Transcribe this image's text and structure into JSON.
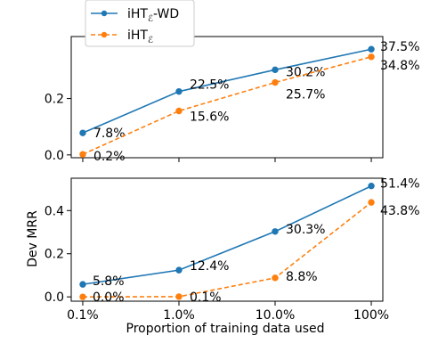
{
  "chart_data": [
    {
      "type": "line",
      "xscale": "log",
      "x": [
        0.1,
        1.0,
        10.0,
        100.0
      ],
      "xticklabels": [
        "0.1%",
        "1.0%",
        "10.0%",
        "100%"
      ],
      "xlabel": "",
      "ylabel": "",
      "ylim": [
        -0.01,
        0.42
      ],
      "yticks": [
        0.0,
        0.2
      ],
      "yticklabels": [
        "0.0",
        "0.2"
      ],
      "grid": false,
      "legend": {
        "placement": "top-left, above the panel",
        "entries": [
          {
            "text": "iHT",
            "sub": "ℰ",
            "suffix": "-WD"
          },
          {
            "text": "iHT",
            "sub": "ℰ",
            "suffix": ""
          }
        ]
      },
      "series": [
        {
          "name": "iHTℰ-WD",
          "style": "solid",
          "marker": "circle",
          "color": "#1f77b4",
          "values": [
            0.078,
            0.225,
            0.302,
            0.375
          ],
          "labels": [
            "7.8%",
            "22.5%",
            "30.2%",
            "37.5%"
          ]
        },
        {
          "name": "iHTℰ",
          "style": "dashed",
          "marker": "circle",
          "color": "#ff7f0e",
          "values": [
            0.002,
            0.156,
            0.257,
            0.348
          ],
          "labels": [
            "0.2%",
            "15.6%",
            "25.7%",
            "34.8%"
          ]
        }
      ]
    },
    {
      "type": "line",
      "xscale": "log",
      "x": [
        0.1,
        1.0,
        10.0,
        100.0
      ],
      "xticklabels": [
        "0.1%",
        "1.0%",
        "10.0%",
        "100%"
      ],
      "xlabel": "Proportion of training data used",
      "ylabel": "Dev MRR",
      "ylim": [
        -0.02,
        0.55
      ],
      "yticks": [
        0.0,
        0.2,
        0.4
      ],
      "yticklabels": [
        "0.0",
        "0.2",
        "0.4"
      ],
      "grid": false,
      "series": [
        {
          "name": "iHTℰ-WD",
          "style": "solid",
          "marker": "circle",
          "color": "#1f77b4",
          "values": [
            0.058,
            0.124,
            0.303,
            0.514
          ],
          "labels": [
            "5.8%",
            "12.4%",
            "30.3%",
            "51.4%"
          ]
        },
        {
          "name": "iHTℰ",
          "style": "dashed",
          "marker": "circle",
          "color": "#ff7f0e",
          "values": [
            0.0,
            0.001,
            0.088,
            0.438
          ],
          "labels": [
            "0.0%",
            "0.1%",
            "8.8%",
            "43.8%"
          ]
        }
      ]
    }
  ]
}
